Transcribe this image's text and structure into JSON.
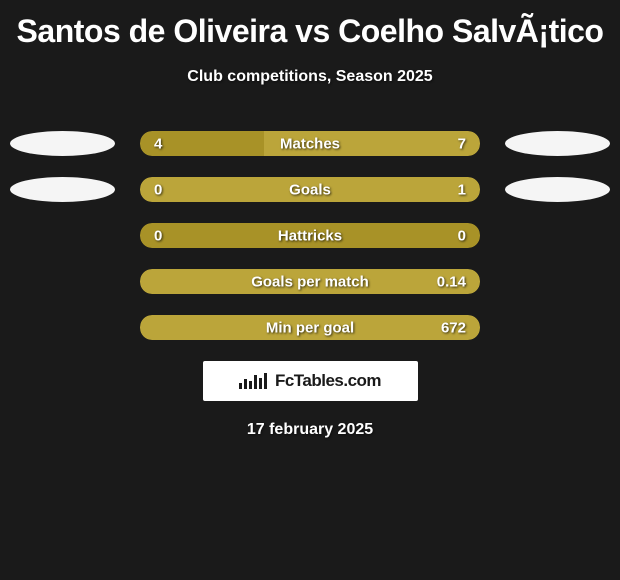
{
  "title": "Santos de Oliveira vs Coelho SalvÃ¡tico",
  "subtitle": "Club competitions, Season 2025",
  "date": "17 february 2025",
  "logo": {
    "text": "FcTables.com"
  },
  "colors": {
    "background": "#1a1a1a",
    "player1": "#a89227",
    "player2": "#bba53a",
    "neutral": "#7a7a7a",
    "oval": "#f5f5f5",
    "logo_bg": "#ffffff",
    "text": "#ffffff"
  },
  "rows": [
    {
      "label": "Matches",
      "left_value": "4",
      "right_value": "7",
      "left_color": "#a89227",
      "right_color": "#bba53a",
      "left_pct": 36.4,
      "right_pct": 63.6,
      "has_ovals": true
    },
    {
      "label": "Goals",
      "left_value": "0",
      "right_value": "1",
      "left_color": "#a89227",
      "right_color": "#bba53a",
      "left_pct": 0,
      "right_pct": 100,
      "has_ovals": true
    },
    {
      "label": "Hattricks",
      "left_value": "0",
      "right_value": "0",
      "left_color": "#a89227",
      "right_color": "#bba53a",
      "left_pct": 100,
      "right_pct": 0,
      "has_ovals": false
    },
    {
      "label": "Goals per match",
      "left_value": "",
      "right_value": "0.14",
      "left_color": "#7a7a7a",
      "right_color": "#bba53a",
      "left_pct": 0,
      "right_pct": 100,
      "has_ovals": false
    },
    {
      "label": "Min per goal",
      "left_value": "",
      "right_value": "672",
      "left_color": "#7a7a7a",
      "right_color": "#bba53a",
      "left_pct": 0,
      "right_pct": 100,
      "has_ovals": false
    }
  ]
}
